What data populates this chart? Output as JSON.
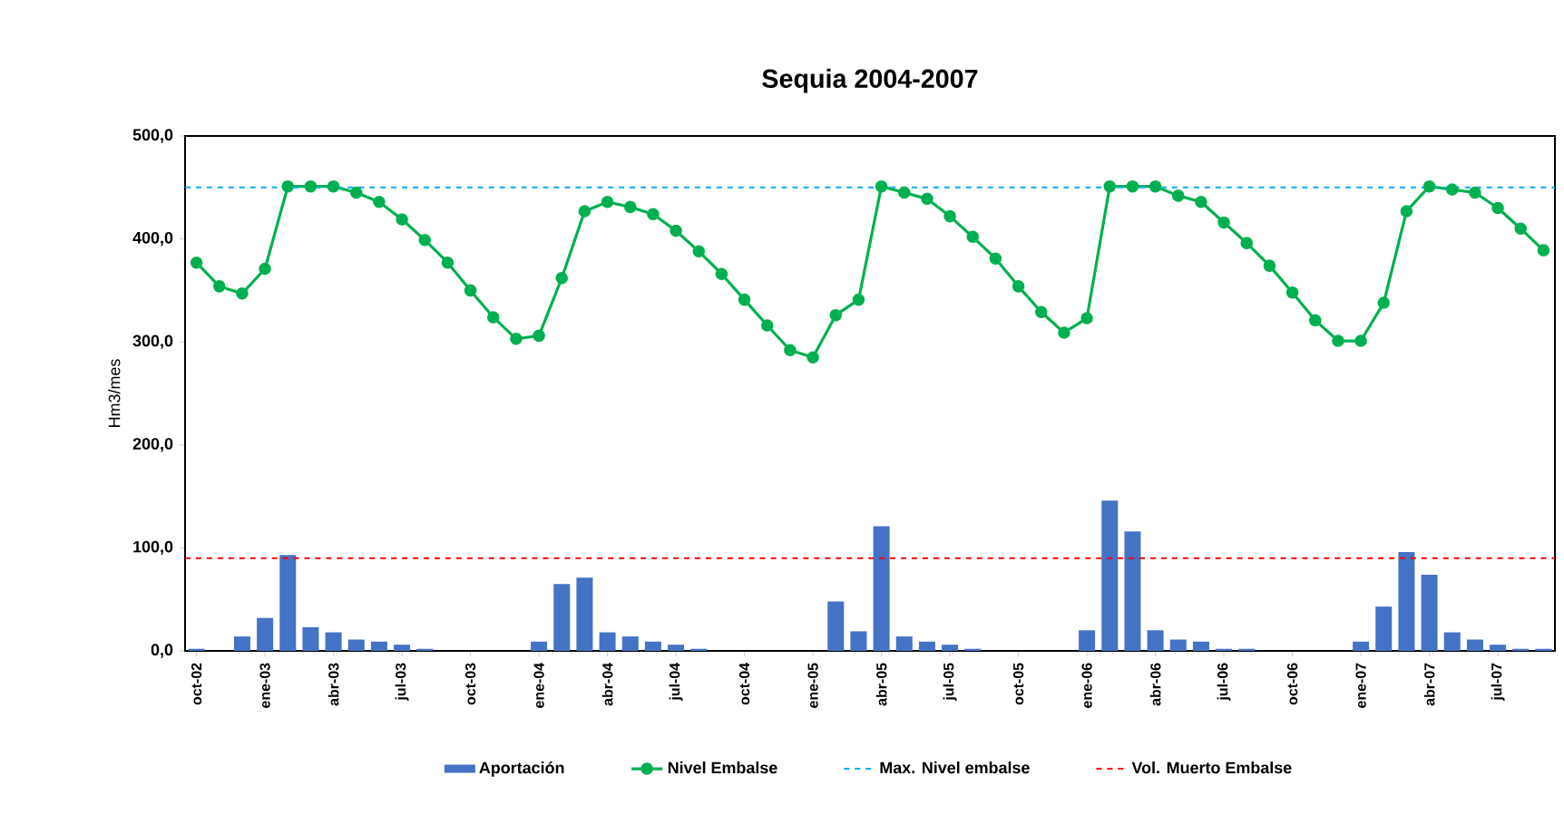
{
  "chart_data": {
    "type": "bar",
    "title": "Sequia 2004-2007",
    "ylabel": "Hm3/mes",
    "categories": [
      "oct-02",
      null,
      null,
      "ene-03",
      null,
      null,
      "abr-03",
      null,
      null,
      "jul-03",
      null,
      null,
      "oct-03",
      null,
      null,
      "ene-04",
      null,
      null,
      "abr-04",
      null,
      null,
      "jul-04",
      null,
      null,
      "oct-04",
      null,
      null,
      "ene-05",
      null,
      null,
      "abr-05",
      null,
      null,
      "jul-05",
      null,
      null,
      "oct-05",
      null,
      null,
      "ene-06",
      null,
      null,
      "abr-06",
      null,
      null,
      "jul-06",
      null,
      null,
      "oct-06",
      null,
      null,
      "ene-07",
      null,
      null,
      "abr-07",
      null,
      null,
      "jul-07",
      null,
      null
    ],
    "series": [
      {
        "name": "Aportación",
        "color": "#4472c4",
        "values": [
          2,
          0,
          14,
          32,
          93,
          23,
          18,
          11,
          9,
          6,
          2,
          0,
          0,
          0,
          0,
          9,
          65,
          71,
          18,
          14,
          9,
          6,
          2,
          0,
          0,
          0,
          0,
          0,
          48,
          19,
          121,
          14,
          9,
          6,
          2,
          0,
          0,
          0,
          0,
          20,
          146,
          116,
          20,
          11,
          9,
          2,
          2,
          0,
          0,
          0,
          0,
          9,
          43,
          96,
          74,
          18,
          11,
          6,
          2,
          2
        ]
      },
      {
        "name": "Nivel Embalse",
        "type": "line",
        "color": "#00b050",
        "marker": "circle",
        "values": [
          377,
          354,
          347,
          371,
          451,
          451,
          451,
          445,
          436,
          419,
          399,
          377,
          350,
          324,
          303,
          306,
          362,
          427,
          436,
          431,
          424,
          408,
          388,
          366,
          341,
          316,
          292,
          285,
          326,
          341,
          451,
          445,
          439,
          422,
          402,
          381,
          354,
          329,
          309,
          323,
          451,
          451,
          451,
          442,
          436,
          416,
          396,
          374,
          348,
          321,
          301,
          301,
          338,
          427,
          451,
          448,
          445,
          430,
          410,
          389
        ]
      }
    ],
    "ref_lines": [
      {
        "axis": "y",
        "value": 450,
        "label": "Max. Nivel embalse",
        "color": "#00b0f0",
        "line_style": "dashed"
      },
      {
        "axis": "y",
        "value": 90,
        "label": "Vol. Muerto Embalse",
        "color": "#ff0000",
        "line_style": "dashed"
      }
    ],
    "ylim": [
      0,
      500
    ],
    "yticks": [
      {
        "value": 0,
        "label": "0,0"
      },
      {
        "value": 100,
        "label": "100,0"
      },
      {
        "value": 200,
        "label": "200,0"
      },
      {
        "value": 300,
        "label": "300,0"
      },
      {
        "value": 400,
        "label": "400,0"
      },
      {
        "value": 500,
        "label": "500,0"
      }
    ],
    "legend": "bottom"
  }
}
